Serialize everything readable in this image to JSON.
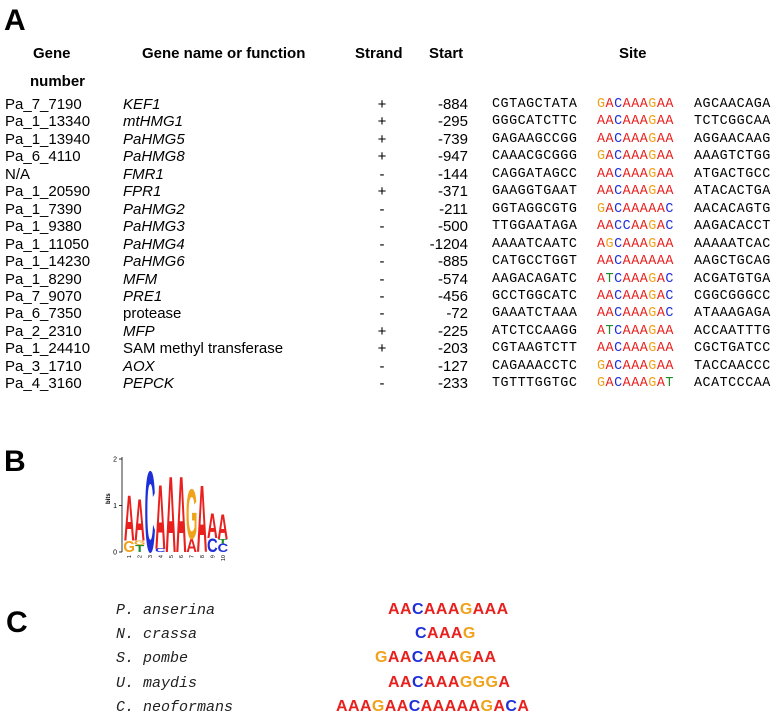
{
  "colors": {
    "A": "#e8201e",
    "C": "#1f2fd8",
    "G": "#f0a21a",
    "T": "#1e8a2a"
  },
  "panels": {
    "a": "A",
    "b": "B",
    "c": "C"
  },
  "headers": {
    "gene": "Gene",
    "gene_number": "number",
    "name": "Gene name or function",
    "strand": "Strand",
    "start": "Start",
    "site": "Site"
  },
  "rows": [
    {
      "gene": "Pa_7_7190",
      "name": "KEF1",
      "italic": true,
      "strand": "+",
      "start": "-884",
      "left": "CGTAGCTATA",
      "core": "GACAAAGAA",
      "right": "AGCAACAGA"
    },
    {
      "gene": "Pa_1_13340",
      "name": "mtHMG1",
      "italic": true,
      "strand": "+",
      "start": "-295",
      "left": "GGGCATCTTC",
      "core": "AACAAAGAA",
      "right": "TCTCGGCAA"
    },
    {
      "gene": "Pa_1_13940",
      "name": "PaHMG5",
      "italic": true,
      "strand": "+",
      "start": "-739",
      "left": "GAGAAGCCGG",
      "core": "AACAAAGAA",
      "right": "AGGAACAAG"
    },
    {
      "gene": "Pa_6_4110",
      "name": "PaHMG8",
      "italic": true,
      "strand": "+",
      "start": "-947",
      "left": "CAAACGCGGG",
      "core": "GACAAAGAA",
      "right": "AAAGTCTGG"
    },
    {
      "gene": "N/A",
      "name": "FMR1",
      "italic": true,
      "strand": "-",
      "start": "-144",
      "left": "CAGGATAGCC",
      "core": "AACAAAGAA",
      "right": "ATGACTGCC"
    },
    {
      "gene": "Pa_1_20590",
      "name": "FPR1",
      "italic": true,
      "strand": "+",
      "start": "-371",
      "left": "GAAGGTGAAT",
      "core": "AACAAAGAA",
      "right": "ATACACTGA"
    },
    {
      "gene": "Pa_1_7390",
      "name": "PaHMG2",
      "italic": true,
      "strand": "-",
      "start": "-211",
      "left": "GGTAGGCGTG",
      "core": "GACAAAAAC",
      "right": "AACACAGTG"
    },
    {
      "gene": "Pa_1_9380",
      "name": "PaHMG3",
      "italic": true,
      "strand": "-",
      "start": "-500",
      "left": "TTGGAATAGA",
      "core": "AACCAAGAC",
      "right": "AAGACACCT"
    },
    {
      "gene": "Pa_1_11050",
      "name": "PaHMG4",
      "italic": true,
      "strand": "-",
      "start": "-1204",
      "left": "AAAATCAATC",
      "core": "AGCAAAGAA",
      "right": "AAAAATCAC"
    },
    {
      "gene": "Pa_1_14230",
      "name": "PaHMG6",
      "italic": true,
      "strand": "-",
      "start": "-885",
      "left": "CATGCCTGGT",
      "core": "AACAAAAAA",
      "right": "AAGCTGCAG"
    },
    {
      "gene": "Pa_1_8290",
      "name": "MFM",
      "italic": true,
      "strand": "-",
      "start": "-574",
      "left": "AAGACAGATC",
      "core": "ATCAAAGAC",
      "right": "ACGATGTGA"
    },
    {
      "gene": "Pa_7_9070",
      "name": "PRE1",
      "italic": true,
      "strand": "-",
      "start": "-456",
      "left": "GCCTGGCATC",
      "core": "AACAAAGAC",
      "right": "CGGCGGGCC"
    },
    {
      "gene": "Pa_6_7350",
      "name": "protease",
      "italic": false,
      "strand": "-",
      "start": "-72",
      "left": "GAAATCTAAA",
      "core": "AACAAAGAC",
      "right": "ATAAAGAGA"
    },
    {
      "gene": "Pa_2_2310",
      "name": "MFP",
      "italic": true,
      "strand": "+",
      "start": "-225",
      "left": "ATCTCCAAGG",
      "core": "ATCAAAGAA",
      "right": "ACCAATTTG"
    },
    {
      "gene": "Pa_1_24410",
      "name": "SAM methyl transferase",
      "italic": false,
      "strand": "+",
      "start": "-203",
      "left": "CGTAAGTCTT",
      "core": "AACAAAGAA",
      "right": "CGCTGATCC"
    },
    {
      "gene": "Pa_3_1710",
      "name": "AOX",
      "italic": true,
      "strand": "-",
      "start": "-127",
      "left": "CAGAAACCTC",
      "core": "GACAAAGAA",
      "right": "TACCAACCC"
    },
    {
      "gene": "Pa_4_3160",
      "name": "PEPCK",
      "italic": true,
      "strand": "-",
      "start": "-233",
      "left": "TGTTTGGTGC",
      "core": "GACAAAGAT",
      "right": "ACATCCCAA"
    }
  ],
  "logo": {
    "ylabel": "bits",
    "yticks": [
      "0",
      "1",
      "2"
    ],
    "positions": [
      {
        "pos": "1",
        "letters": [
          {
            "base": "G",
            "bits": 0.25
          },
          {
            "base": "A",
            "bits": 1.0
          }
        ]
      },
      {
        "pos": "2",
        "letters": [
          {
            "base": "T",
            "bits": 0.15
          },
          {
            "base": "G",
            "bits": 0.1
          },
          {
            "base": "A",
            "bits": 0.92
          }
        ]
      },
      {
        "pos": "3",
        "letters": [
          {
            "base": "C",
            "bits": 1.8
          }
        ]
      },
      {
        "pos": "4",
        "letters": [
          {
            "base": "C",
            "bits": 0.08
          },
          {
            "base": "A",
            "bits": 1.42
          }
        ]
      },
      {
        "pos": "5",
        "letters": [
          {
            "base": "A",
            "bits": 1.68
          }
        ]
      },
      {
        "pos": "6",
        "letters": [
          {
            "base": "A",
            "bits": 1.68
          }
        ]
      },
      {
        "pos": "7",
        "letters": [
          {
            "base": "A",
            "bits": 0.28
          },
          {
            "base": "G",
            "bits": 1.1
          }
        ]
      },
      {
        "pos": "8",
        "letters": [
          {
            "base": "A",
            "bits": 1.48
          }
        ]
      },
      {
        "pos": "9",
        "letters": [
          {
            "base": "C",
            "bits": 0.3
          },
          {
            "base": "A",
            "bits": 0.55
          }
        ]
      },
      {
        "pos": "10",
        "letters": [
          {
            "base": "C",
            "bits": 0.18
          },
          {
            "base": "T",
            "bits": 0.1
          },
          {
            "base": "A",
            "bits": 0.55
          }
        ]
      }
    ]
  },
  "species": [
    {
      "name": "P. anserina",
      "seq": "AACAAAGAAA"
    },
    {
      "name": "N. crassa",
      "seq": "CAAAG"
    },
    {
      "name": "S. pombe",
      "seq": "GAACAAAGAA"
    },
    {
      "name": "U. maydis",
      "seq": "AACAAAGGGA"
    },
    {
      "name": "C. neoformans",
      "seq": "AAAGAACAAAAAGACA"
    }
  ]
}
